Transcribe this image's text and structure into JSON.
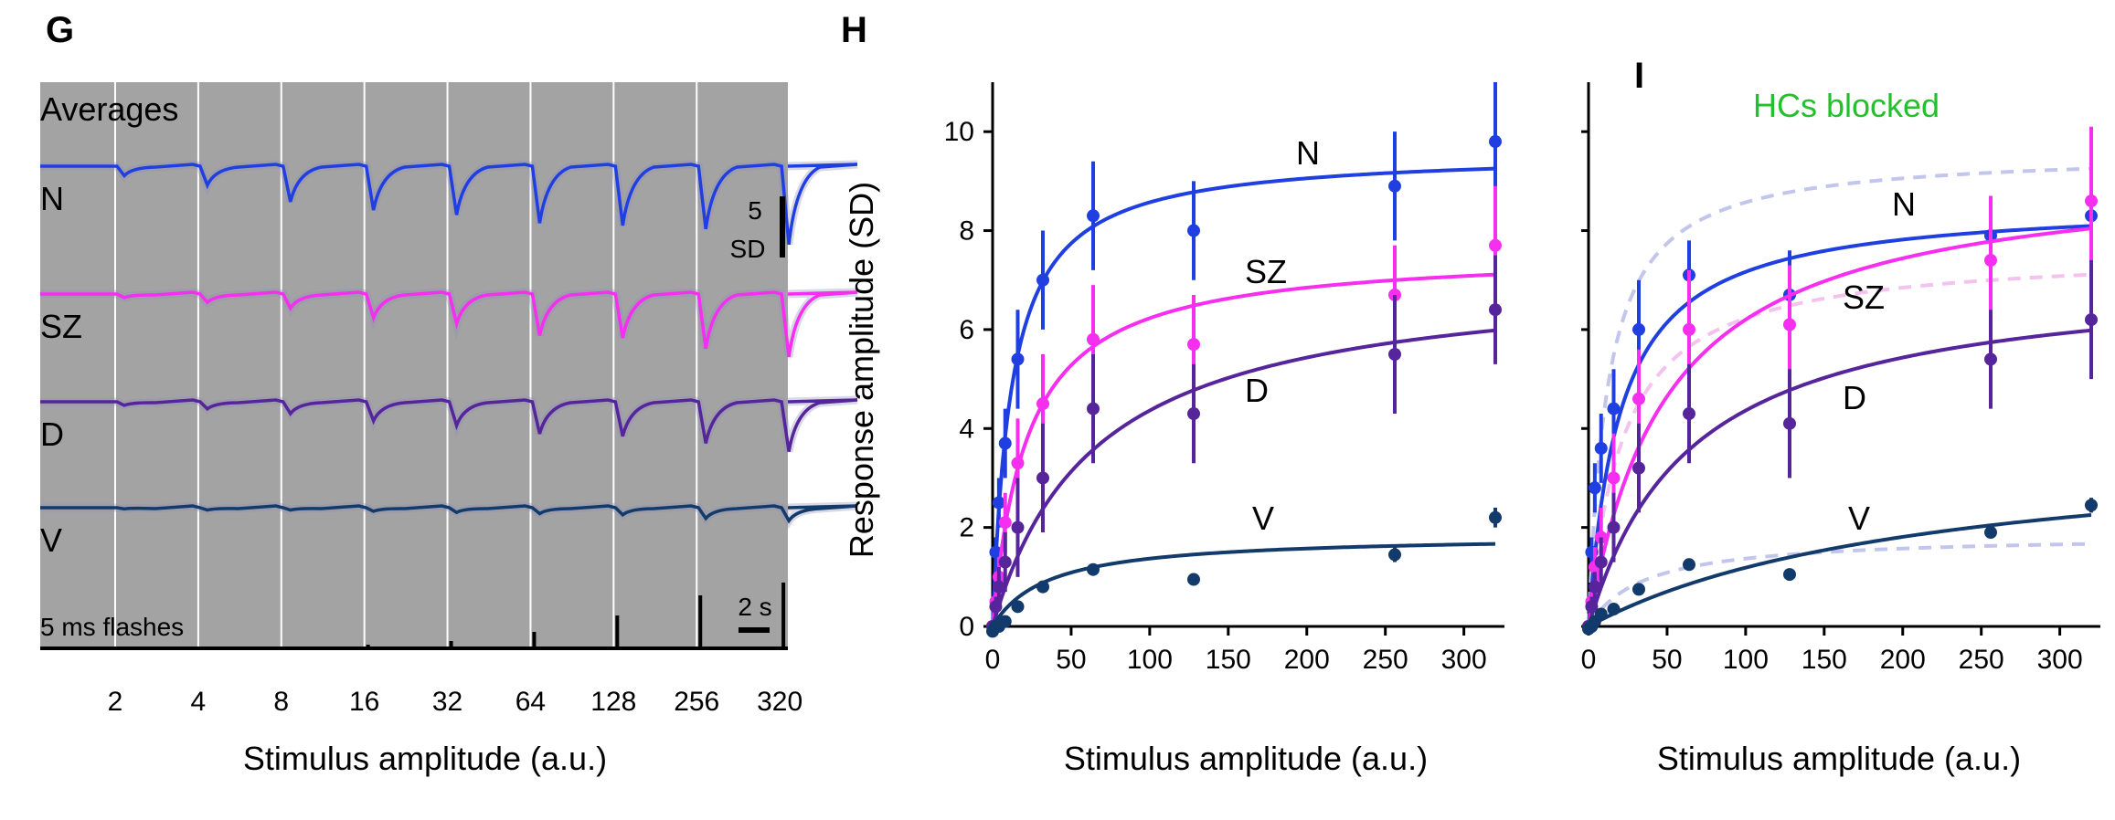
{
  "panels": {
    "g": {
      "label": "G"
    },
    "h": {
      "label": "H"
    },
    "i": {
      "label": "I",
      "note": "HCs blocked"
    }
  },
  "colors": {
    "N": "#1f3fe0",
    "SZ": "#f52ef0",
    "D": "#56259c",
    "V": "#123a6b",
    "note": "#22c02a",
    "trace_panel_bg": "#a3a3a3",
    "reference_dashed": "#c3c6ec",
    "pink_dashed": "#f4c2ee"
  },
  "chart_data": [
    {
      "type": "line",
      "panel": "G",
      "title": "Averages",
      "xlabel": "Stimulus amplitude (a.u.)",
      "categories": [
        "2",
        "4",
        "8",
        "16",
        "32",
        "64",
        "128",
        "256",
        "320"
      ],
      "stimulus_text": "5 ms flashes",
      "scalebar_amplitude": {
        "value": "5",
        "unit": "SD"
      },
      "scalebar_time": "2 s",
      "series": [
        {
          "name": "N",
          "trough_depth_sd": [
            0.8,
            1.6,
            3.0,
            3.7,
            4.1,
            4.8,
            5.0,
            5.3,
            6.6
          ]
        },
        {
          "name": "SZ",
          "trough_depth_sd": [
            0.3,
            0.7,
            1.2,
            2.0,
            2.5,
            3.5,
            3.7,
            4.6,
            5.3
          ]
        },
        {
          "name": "D",
          "trough_depth_sd": [
            0.3,
            0.6,
            1.0,
            1.6,
            2.0,
            2.7,
            2.9,
            3.5,
            4.2
          ]
        },
        {
          "name": "V",
          "trough_depth_sd": [
            0.1,
            0.2,
            0.2,
            0.3,
            0.4,
            0.5,
            0.6,
            0.9,
            1.1
          ]
        }
      ]
    },
    {
      "type": "scatter",
      "panel": "H",
      "xlabel": "Stimulus amplitude (a.u.)",
      "ylabel": "Response amplitude (SD)",
      "xlim": [
        0,
        320
      ],
      "ylim": [
        0,
        11
      ],
      "xticks": [
        0,
        50,
        100,
        150,
        200,
        250,
        300
      ],
      "yticks": [
        0,
        2,
        4,
        6,
        8,
        10
      ],
      "x": [
        0,
        2,
        4,
        8,
        16,
        32,
        64,
        128,
        256,
        320
      ],
      "series": [
        {
          "name": "N",
          "y": [
            0.0,
            1.5,
            2.5,
            3.7,
            5.4,
            7.0,
            8.3,
            8.0,
            8.9,
            9.8
          ],
          "err": [
            0,
            0.3,
            0.5,
            0.7,
            1.0,
            1.0,
            1.1,
            1.0,
            1.1,
            1.2
          ],
          "fit_ymax": 9.6,
          "fit_k": 12
        },
        {
          "name": "SZ",
          "y": [
            0.0,
            0.5,
            1.0,
            2.1,
            3.3,
            4.5,
            5.8,
            5.7,
            6.7,
            7.7
          ],
          "err": [
            0,
            0.2,
            0.4,
            0.6,
            0.9,
            1.0,
            1.1,
            1.0,
            1.0,
            1.2
          ],
          "fit_ymax": 7.6,
          "fit_k": 22
        },
        {
          "name": "D",
          "y": [
            0.0,
            0.4,
            0.8,
            1.3,
            2.0,
            3.0,
            4.4,
            4.3,
            5.5,
            6.4
          ],
          "err": [
            0,
            0.2,
            0.4,
            0.6,
            1.0,
            1.1,
            1.1,
            1.0,
            1.2,
            1.1
          ],
          "fit_ymax": 7.2,
          "fit_k": 65
        },
        {
          "name": "V",
          "y": [
            -0.1,
            0.0,
            0.0,
            0.1,
            0.4,
            0.8,
            1.15,
            0.95,
            1.45,
            2.2
          ],
          "err": [
            0,
            0,
            0,
            0,
            0,
            0.05,
            0.05,
            0.05,
            0.15,
            0.2
          ],
          "fit_ymax": 1.85,
          "fit_k": 35
        }
      ]
    },
    {
      "type": "scatter",
      "panel": "I",
      "title": "HCs blocked",
      "xlabel": "Stimulus amplitude (a.u.)",
      "xlim": [
        0,
        320
      ],
      "ylim": [
        0,
        11
      ],
      "xticks": [
        0,
        50,
        100,
        150,
        200,
        250,
        300
      ],
      "x": [
        0,
        2,
        4,
        8,
        16,
        32,
        64,
        128,
        256,
        320
      ],
      "series": [
        {
          "name": "N",
          "y": [
            0.0,
            1.5,
            2.8,
            3.6,
            4.4,
            6.0,
            7.1,
            6.7,
            7.9,
            8.3
          ],
          "err": [
            0,
            0.3,
            0.5,
            0.7,
            0.8,
            1.0,
            0.7,
            0.9,
            0.8,
            1.0
          ],
          "fit_ymax": 8.6,
          "fit_k": 20
        },
        {
          "name": "SZ",
          "y": [
            0.0,
            0.5,
            1.2,
            1.8,
            3.0,
            4.6,
            6.0,
            6.1,
            7.4,
            8.6
          ],
          "err": [
            0,
            0.2,
            0.4,
            0.6,
            0.9,
            1.0,
            1.2,
            1.2,
            1.3,
            1.5
          ],
          "fit_ymax": 9.3,
          "fit_k": 50
        },
        {
          "name": "D",
          "y": [
            0.0,
            0.4,
            0.8,
            1.3,
            2.0,
            3.2,
            4.3,
            4.1,
            5.4,
            6.2
          ],
          "err": [
            0,
            0.2,
            0.3,
            0.5,
            0.7,
            0.9,
            1.0,
            1.1,
            1.0,
            1.2
          ],
          "fit_ymax": 7.2,
          "fit_k": 65
        },
        {
          "name": "V",
          "y": [
            -0.05,
            0.0,
            0.1,
            0.25,
            0.35,
            0.75,
            1.25,
            1.05,
            1.9,
            2.45
          ],
          "err": [
            0,
            0,
            0,
            0,
            0,
            0.05,
            0.05,
            0.05,
            0.1,
            0.15
          ],
          "fit_ymax": 3.8,
          "fit_k": 220
        }
      ]
    }
  ]
}
